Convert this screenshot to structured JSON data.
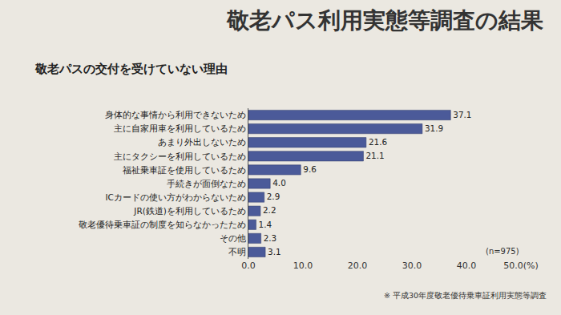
{
  "chart_data": {
    "type": "bar",
    "orientation": "horizontal",
    "title": "敬老パス利用実態等調査の結果",
    "subtitle": "敬老パスの交付を受けていない理由",
    "annotations": [
      "(n=975)",
      "※ 平成30年度敬老優待乗車証利用実態等調査"
    ],
    "categories": [
      "身体的な事情から利用できないため",
      "主に自家用車を利用しているため",
      "あまり外出しないため",
      "主にタクシーを利用しているため",
      "福祉乗車証を使用しているため",
      "手続きが面倒なため",
      "ICカードの使い方がわからないため",
      "JR(鉄道)を利用しているため",
      "敬老優待乗車証の制度を知らなかったため",
      "その他",
      "不明"
    ],
    "values": [
      37.1,
      31.9,
      21.6,
      21.1,
      9.6,
      4.0,
      2.9,
      2.2,
      1.4,
      2.3,
      3.1
    ],
    "value_labels": [
      "37.1",
      "31.9",
      "21.6",
      "21.1",
      "9.6",
      "4.0",
      "2.9",
      "2.2",
      "1.4",
      "2.3",
      "3.1"
    ],
    "color": "#4b5a99",
    "xlim": [
      0,
      50
    ],
    "xticks": [
      {
        "value": 0,
        "label": "0.0"
      },
      {
        "value": 10,
        "label": "10.0"
      },
      {
        "value": 20,
        "label": "20.0"
      },
      {
        "value": 30,
        "label": "30.0"
      },
      {
        "value": 40,
        "label": "40.0"
      },
      {
        "value": 50,
        "label": "50.0(%)"
      }
    ],
    "grid": false,
    "data_labels": true
  }
}
